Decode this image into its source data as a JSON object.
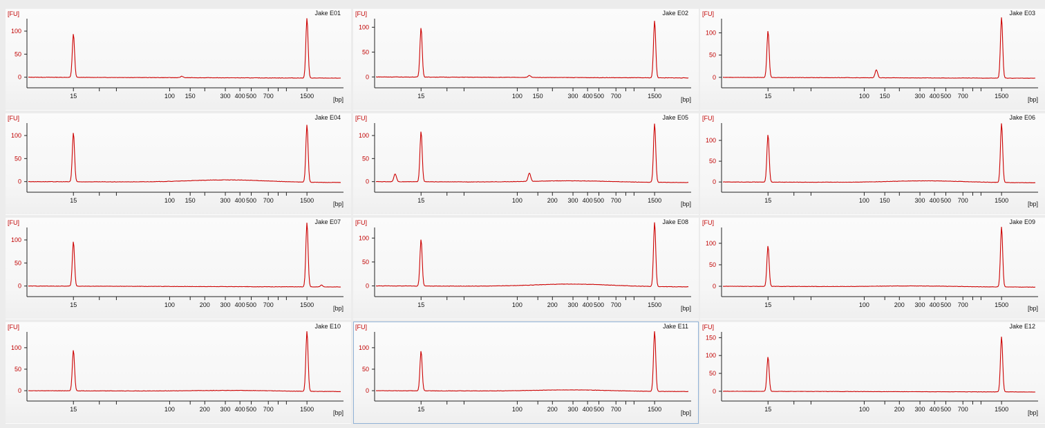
{
  "colors": {
    "trace": "#cc0000",
    "axis": "#222222",
    "yLabel": "#c00000",
    "selectedBorder": "#8fb1d6"
  },
  "selected_panel": "Jake E11",
  "chart_data": [
    {
      "type": "line",
      "title": "Jake E01",
      "ylabel": "[FU]",
      "xunit": "[bp]",
      "yticks": [
        0,
        50,
        100
      ],
      "ylim": [
        -8,
        130
      ],
      "xticks": [
        "15",
        "100",
        "150",
        "300",
        "400",
        "500",
        "700",
        "1500"
      ],
      "minor_ticks": [
        25,
        35,
        200,
        850,
        1000
      ],
      "x": [
        15,
        100,
        300,
        400,
        500,
        700,
        1500
      ],
      "markerHeight": [
        95,
        130
      ],
      "baseline": "flat",
      "bumps": [
        {
          "x": 127,
          "h": 3
        }
      ],
      "smear": null
    },
    {
      "type": "line",
      "title": "Jake E02",
      "ylabel": "[FU]",
      "xunit": "[bp]",
      "yticks": [
        0,
        50,
        100
      ],
      "ylim": [
        -8,
        120
      ],
      "xticks": [
        "15",
        "100",
        "150",
        "300",
        "400",
        "500",
        "700",
        "1500"
      ],
      "minor_ticks": [
        25,
        35,
        200,
        850,
        1000
      ],
      "markerHeight": [
        100,
        115
      ],
      "bumps": [
        {
          "x": 127,
          "h": 4
        }
      ],
      "smear": null
    },
    {
      "type": "line",
      "title": "Jake E03",
      "ylabel": "[FU]",
      "xunit": "[bp]",
      "yticks": [
        0,
        50,
        100
      ],
      "ylim": [
        -8,
        135
      ],
      "xticks": [
        "15",
        "100",
        "150",
        "300",
        "400",
        "500",
        "700",
        "1500"
      ],
      "minor_ticks": [
        25,
        35,
        200,
        850,
        1000
      ],
      "markerHeight": [
        105,
        137
      ],
      "bumps": [
        {
          "x": 127,
          "h": 18
        }
      ],
      "smear": null
    },
    {
      "type": "line",
      "title": "Jake E04",
      "ylabel": "[FU]",
      "xunit": "[bp]",
      "yticks": [
        0,
        50,
        100
      ],
      "ylim": [
        -8,
        130
      ],
      "xticks": [
        "15",
        "100",
        "150",
        "300",
        "400",
        "500",
        "700",
        "1500"
      ],
      "minor_ticks": [
        25,
        35,
        200,
        850,
        1000
      ],
      "markerHeight": [
        107,
        125
      ],
      "bumps": [],
      "smear": {
        "center": 320,
        "h": 5
      }
    },
    {
      "type": "line",
      "title": "Jake E05",
      "ylabel": "[FU]",
      "xunit": "[bp]",
      "yticks": [
        0,
        50,
        100
      ],
      "ylim": [
        -8,
        130
      ],
      "xticks": [
        "15",
        "100",
        "200",
        "300",
        "400",
        "500",
        "700",
        "1500"
      ],
      "minor_ticks": [
        25,
        35,
        150,
        850,
        1000
      ],
      "markerHeight": [
        110,
        128
      ],
      "bumps": [
        {
          "x": 9,
          "h": 17
        },
        {
          "x": 127,
          "h": 18
        }
      ],
      "smear": {
        "center": 300,
        "h": 3
      }
    },
    {
      "type": "line",
      "title": "Jake E06",
      "ylabel": "[FU]",
      "xunit": "[bp]",
      "yticks": [
        0,
        50,
        100
      ],
      "ylim": [
        -8,
        145
      ],
      "xticks": [
        "15",
        "100",
        "150",
        "300",
        "400",
        "500",
        "700",
        "1500"
      ],
      "minor_ticks": [
        25,
        35,
        200,
        850,
        1000
      ],
      "markerHeight": [
        115,
        143
      ],
      "bumps": [],
      "smear": {
        "center": 350,
        "h": 4
      }
    },
    {
      "type": "line",
      "title": "Jake E07",
      "ylabel": "[FU]",
      "xunit": "[bp]",
      "yticks": [
        0,
        50,
        100
      ],
      "ylim": [
        -8,
        130
      ],
      "xticks": [
        "15",
        "100",
        "200",
        "300",
        "400",
        "500",
        "700",
        "1500"
      ],
      "minor_ticks": [
        25,
        35,
        150,
        850,
        1000
      ],
      "markerHeight": [
        97,
        140
      ],
      "bumps": [
        {
          "x": 2000,
          "h": 4
        }
      ],
      "smear": null
    },
    {
      "type": "line",
      "title": "Jake E08",
      "ylabel": "[FU]",
      "xunit": "[bp]",
      "yticks": [
        0,
        50,
        100
      ],
      "ylim": [
        -8,
        125
      ],
      "xticks": [
        "15",
        "100",
        "200",
        "300",
        "400",
        "500",
        "700",
        "1500"
      ],
      "minor_ticks": [
        25,
        35,
        150,
        850,
        1000
      ],
      "markerHeight": [
        98,
        135
      ],
      "bumps": [],
      "smear": {
        "center": 300,
        "h": 5
      }
    },
    {
      "type": "line",
      "title": "Jake E09",
      "ylabel": "[FU]",
      "xunit": "[bp]",
      "yticks": [
        0,
        50,
        100
      ],
      "ylim": [
        -8,
        140
      ],
      "xticks": [
        "15",
        "100",
        "200",
        "300",
        "400",
        "500",
        "700",
        "1500"
      ],
      "minor_ticks": [
        25,
        35,
        150,
        850,
        1000
      ],
      "markerHeight": [
        95,
        140
      ],
      "bumps": [],
      "smear": {
        "center": 280,
        "h": 2
      }
    },
    {
      "type": "line",
      "title": "Jake E10",
      "ylabel": "[FU]",
      "xunit": "[bp]",
      "yticks": [
        0,
        50,
        100
      ],
      "ylim": [
        -8,
        140
      ],
      "xticks": [
        "15",
        "100",
        "200",
        "300",
        "400",
        "500",
        "700",
        "1500"
      ],
      "minor_ticks": [
        25,
        35,
        150,
        850,
        1000
      ],
      "markerHeight": [
        95,
        140
      ],
      "bumps": [],
      "smear": {
        "center": 350,
        "h": 2
      }
    },
    {
      "type": "line",
      "title": "Jake E11",
      "ylabel": "[FU]",
      "xunit": "[bp]",
      "yticks": [
        0,
        50,
        100
      ],
      "ylim": [
        -8,
        140
      ],
      "xticks": [
        "15",
        "100",
        "200",
        "300",
        "400",
        "500",
        "700",
        "1500"
      ],
      "minor_ticks": [
        25,
        35,
        150,
        850,
        1000
      ],
      "markerHeight": [
        93,
        140
      ],
      "bumps": [],
      "smear": {
        "center": 300,
        "h": 3
      }
    },
    {
      "type": "line",
      "title": "Jake E12",
      "ylabel": "[FU]",
      "xunit": "[bp]",
      "yticks": [
        0,
        50,
        100,
        150
      ],
      "ylim": [
        -8,
        170
      ],
      "xticks": [
        "15",
        "100",
        "200",
        "300",
        "400",
        "500",
        "700",
        "1500"
      ],
      "minor_ticks": [
        25,
        35,
        150,
        850,
        1000
      ],
      "markerHeight": [
        97,
        155
      ],
      "bumps": [],
      "smear": null
    }
  ]
}
